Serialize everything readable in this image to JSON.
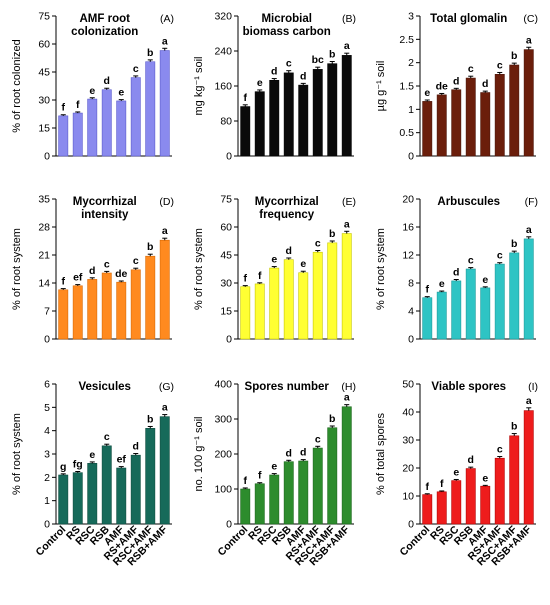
{
  "chart_data": {
    "categories": [
      "Control",
      "RS",
      "RSC",
      "RSB",
      "AMF",
      "RS+AMF",
      "RSC+AMF",
      "RSB+AMF"
    ],
    "panels": [
      {
        "type": "bar",
        "title": "AMF root colonization",
        "panel_label": "(A)",
        "ylabel": "% of root colonized",
        "ylim": [
          0,
          75
        ],
        "yticks": [
          "0",
          "15",
          "30",
          "45",
          "60",
          "75"
        ],
        "color": "#8a8aee",
        "edge": "#5a5acc",
        "values": [
          21.5,
          23,
          30.5,
          35.5,
          29.5,
          42,
          50.5,
          56.5
        ],
        "errors": [
          0.6,
          0.6,
          0.7,
          0.8,
          0.7,
          0.9,
          1.0,
          1.2
        ],
        "letters": [
          "f",
          "f",
          "e",
          "d",
          "e",
          "c",
          "b",
          "a"
        ]
      },
      {
        "type": "bar",
        "title": "Microbial biomass carbon",
        "panel_label": "(B)",
        "ylabel": "mg kg⁻¹ soil",
        "ylim": [
          0,
          320
        ],
        "yticks": [
          "0",
          "80",
          "160",
          "240",
          "320"
        ],
        "color": "#0a0a0a",
        "edge": "#000000",
        "values": [
          113,
          147,
          173,
          190,
          162,
          198,
          211,
          230
        ],
        "errors": [
          4,
          4,
          4,
          5,
          4,
          5,
          5,
          5
        ],
        "letters": [
          "f",
          "e",
          "d",
          "c",
          "d",
          "bc",
          "b",
          "a"
        ]
      },
      {
        "type": "bar",
        "title": "Total glomalin",
        "panel_label": "(C)",
        "ylabel": "µg g⁻¹ soil",
        "ylim": [
          0,
          3.0
        ],
        "yticks": [
          "0",
          "0.5",
          "1",
          "1.5",
          "2",
          "2.5",
          "3"
        ],
        "color": "#6b1e0b",
        "edge": "#4a1205",
        "values": [
          1.17,
          1.31,
          1.42,
          1.67,
          1.36,
          1.75,
          1.95,
          2.28
        ],
        "errors": [
          0.03,
          0.03,
          0.03,
          0.04,
          0.03,
          0.04,
          0.04,
          0.05
        ],
        "letters": [
          "e",
          "de",
          "d",
          "c",
          "d",
          "c",
          "b",
          "a"
        ]
      },
      {
        "type": "bar",
        "title": "Mycorrhizal intensity",
        "panel_label": "(D)",
        "ylabel": "% of root system",
        "ylim": [
          0,
          35
        ],
        "yticks": [
          "0",
          "7",
          "14",
          "21",
          "28",
          "35"
        ],
        "color": "#ff8a1f",
        "edge": "#d96800",
        "values": [
          12.3,
          13.3,
          14.9,
          16.5,
          14.2,
          17.3,
          20.7,
          24.7
        ],
        "errors": [
          0.3,
          0.3,
          0.4,
          0.4,
          0.3,
          0.4,
          0.5,
          0.5
        ],
        "letters": [
          "f",
          "ef",
          "d",
          "c",
          "de",
          "c",
          "b",
          "a"
        ]
      },
      {
        "type": "bar",
        "title": "Mycorrhizal frequency",
        "panel_label": "(E)",
        "ylabel": "% of root system",
        "ylim": [
          0,
          75
        ],
        "yticks": [
          "0",
          "15",
          "30",
          "45",
          "60",
          "75"
        ],
        "color": "#ffff33",
        "edge": "#c8c800",
        "values": [
          28,
          29.5,
          38,
          42.5,
          35.5,
          46.5,
          51.5,
          56.5
        ],
        "errors": [
          0.6,
          0.6,
          0.8,
          0.9,
          0.8,
          0.9,
          1.0,
          1.2
        ],
        "letters": [
          "f",
          "f",
          "e",
          "d",
          "e",
          "c",
          "b",
          "a"
        ]
      },
      {
        "type": "bar",
        "title": "Arbuscules",
        "panel_label": "(F)",
        "ylabel": "% of root system",
        "ylim": [
          0,
          20
        ],
        "yticks": [
          "0",
          "4",
          "8",
          "12",
          "16",
          "20"
        ],
        "color": "#2ec4c4",
        "edge": "#1a9a9a",
        "values": [
          5.9,
          6.7,
          8.3,
          10.0,
          7.3,
          10.7,
          12.3,
          14.3
        ],
        "errors": [
          0.15,
          0.15,
          0.2,
          0.2,
          0.15,
          0.2,
          0.25,
          0.3
        ],
        "letters": [
          "f",
          "e",
          "d",
          "c",
          "e",
          "c",
          "b",
          "a"
        ]
      },
      {
        "type": "bar",
        "title": "Vesicules",
        "panel_label": "(G)",
        "ylabel": "% of root system",
        "ylim": [
          0,
          6
        ],
        "yticks": [
          "0",
          "1",
          "2",
          "3",
          "4",
          "5",
          "6"
        ],
        "color": "#166a5a",
        "edge": "#0c4a3e",
        "values": [
          2.1,
          2.2,
          2.6,
          3.35,
          2.4,
          2.95,
          4.1,
          4.6
        ],
        "errors": [
          0.05,
          0.05,
          0.06,
          0.07,
          0.06,
          0.07,
          0.08,
          0.09
        ],
        "letters": [
          "g",
          "fg",
          "e",
          "c",
          "ef",
          "d",
          "b",
          "a"
        ]
      },
      {
        "type": "bar",
        "title": "Spores number",
        "panel_label": "(H)",
        "ylabel": "no. 100 g⁻¹ soil",
        "ylim": [
          0,
          400
        ],
        "yticks": [
          "0",
          "100",
          "200",
          "300",
          "400"
        ],
        "color": "#2d8c2d",
        "edge": "#1a661a",
        "values": [
          100,
          115,
          140,
          178,
          180,
          217,
          275,
          335
        ],
        "errors": [
          3,
          3,
          4,
          4,
          4,
          5,
          5,
          6
        ],
        "letters": [
          "f",
          "f",
          "e",
          "d",
          "d",
          "c",
          "b",
          "a"
        ]
      },
      {
        "type": "bar",
        "title": "Viable spores",
        "panel_label": "(I)",
        "ylabel": "% of total spores",
        "ylim": [
          0,
          50
        ],
        "yticks": [
          "0",
          "10",
          "20",
          "30",
          "40",
          "50"
        ],
        "color": "#ee1c1c",
        "edge": "#b30000",
        "values": [
          10.5,
          11.5,
          15.5,
          19.8,
          13.5,
          23.5,
          31.5,
          40.5
        ],
        "errors": [
          0.3,
          0.3,
          0.4,
          0.5,
          0.3,
          0.6,
          0.8,
          1.0
        ],
        "letters": [
          "f",
          "f",
          "e",
          "d",
          "e",
          "c",
          "b",
          "a"
        ]
      }
    ]
  }
}
